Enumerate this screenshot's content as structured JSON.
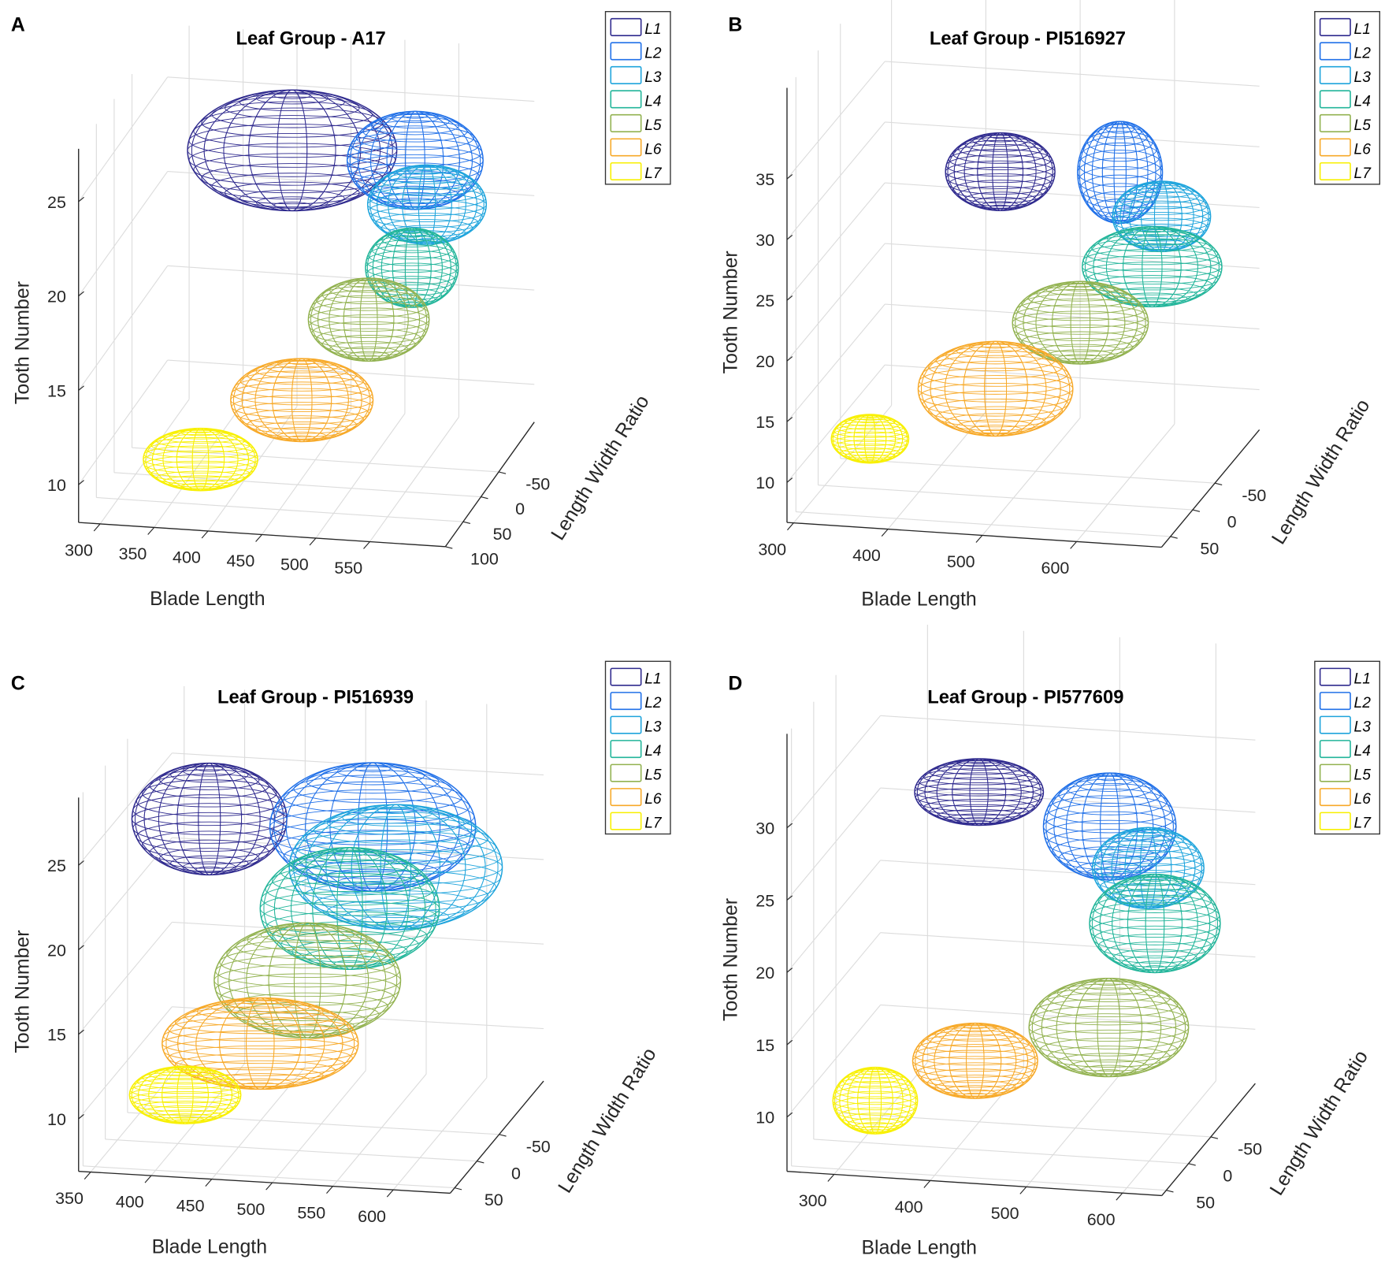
{
  "legend_labels": [
    "L1",
    "L2",
    "L3",
    "L4",
    "L5",
    "L6",
    "L7"
  ],
  "colors": [
    "#2f2a8e",
    "#2070e8",
    "#1ea4dc",
    "#22b59a",
    "#92b250",
    "#f7a928",
    "#f8f000"
  ],
  "chart_data": [
    {
      "type": "scatter3d-ellipsoid",
      "panel": "A",
      "title": "Leaf Group - A17",
      "xlabel": "Blade Length",
      "ylabel": "Length Width Ratio",
      "zlabel": "Tooth Number",
      "xlim": [
        280,
        620
      ],
      "ylim": [
        -150,
        100
      ],
      "zlim": [
        8,
        27.8
      ],
      "xticks": [
        300,
        350,
        400,
        450,
        500,
        550
      ],
      "yticks": [
        -50,
        0,
        50,
        100
      ],
      "zticks": [
        10,
        15,
        20,
        25
      ],
      "grid": true,
      "legend": "top-right",
      "ellipsoids": [
        {
          "label": "L1",
          "blade": 445,
          "lwr": 0,
          "tooth": 25.7,
          "r_blade": 97,
          "r_tooth": 3.2
        },
        {
          "label": "L2",
          "blade": 559,
          "lwr": 0,
          "tooth": 25.6,
          "r_blade": 63,
          "r_tooth": 2.6
        },
        {
          "label": "L3",
          "blade": 570,
          "lwr": 0,
          "tooth": 23.3,
          "r_blade": 55,
          "r_tooth": 2.1
        },
        {
          "label": "L4",
          "blade": 556,
          "lwr": 0,
          "tooth": 19.9,
          "r_blade": 43,
          "r_tooth": 2.1
        },
        {
          "label": "L5",
          "blade": 516,
          "lwr": 0,
          "tooth": 17.0,
          "r_blade": 56,
          "r_tooth": 2.2
        },
        {
          "label": "L6",
          "blade": 454,
          "lwr": 0,
          "tooth": 12.5,
          "r_blade": 66,
          "r_tooth": 2.2
        },
        {
          "label": "L7",
          "blade": 360,
          "lwr": 0,
          "tooth": 9.0,
          "r_blade": 53,
          "r_tooth": 1.65
        }
      ]
    },
    {
      "type": "scatter3d-ellipsoid",
      "panel": "B",
      "title": "Leaf Group - PI516927",
      "xlabel": "Blade Length",
      "ylabel": "Length Width Ratio",
      "zlabel": "Tooth Number",
      "xlim": [
        293,
        690
      ],
      "ylim": [
        -150,
        70
      ],
      "zlim": [
        6.7,
        42.5
      ],
      "xticks": [
        300,
        400,
        500,
        600
      ],
      "yticks": [
        -50,
        0,
        50
      ],
      "zticks": [
        10,
        15,
        20,
        25,
        30,
        35
      ],
      "grid": true,
      "legend": "top-right",
      "ellipsoids": [
        {
          "label": "L1",
          "blade": 486,
          "lwr": 0,
          "tooth": 33.5,
          "r_blade": 58,
          "r_tooth": 3.2
        },
        {
          "label": "L2",
          "blade": 613,
          "lwr": 0,
          "tooth": 34.1,
          "r_blade": 45,
          "r_tooth": 4.2
        },
        {
          "label": "L3",
          "blade": 657,
          "lwr": 0,
          "tooth": 30.7,
          "r_blade": 52,
          "r_tooth": 2.9
        },
        {
          "label": "L4",
          "blade": 647,
          "lwr": 0,
          "tooth": 26.5,
          "r_blade": 74,
          "r_tooth": 3.3
        },
        {
          "label": "L5",
          "blade": 571,
          "lwr": 0,
          "tooth": 21.5,
          "r_blade": 72,
          "r_tooth": 3.4
        },
        {
          "label": "L6",
          "blade": 481,
          "lwr": 0,
          "tooth": 15.6,
          "r_blade": 82,
          "r_tooth": 3.9
        },
        {
          "label": "L7",
          "blade": 348,
          "lwr": 0,
          "tooth": 10.8,
          "r_blade": 41,
          "r_tooth": 2.0
        }
      ]
    },
    {
      "type": "scatter3d-ellipsoid",
      "panel": "C",
      "title": "Leaf Group - PI516939",
      "xlabel": "Blade Length",
      "ylabel": "Length Width Ratio",
      "zlabel": "Tooth Number",
      "xlim": [
        340,
        647
      ],
      "ylim": [
        -150,
        60
      ],
      "zlim": [
        6.9,
        29
      ],
      "xticks": [
        350,
        400,
        450,
        500,
        550,
        600
      ],
      "yticks": [
        -50,
        0,
        50
      ],
      "zticks": [
        10,
        15,
        20,
        25
      ],
      "grid": true,
      "legend": "top-right",
      "ellipsoids": [
        {
          "label": "L1",
          "blade": 426,
          "lwr": 0,
          "tooth": 26.2,
          "r_blade": 64,
          "r_tooth": 3.3
        },
        {
          "label": "L2",
          "blade": 561,
          "lwr": 0,
          "tooth": 26.3,
          "r_blade": 85,
          "r_tooth": 3.8
        },
        {
          "label": "L3",
          "blade": 580,
          "lwr": 0,
          "tooth": 24.0,
          "r_blade": 88,
          "r_tooth": 3.7
        },
        {
          "label": "L4",
          "blade": 542,
          "lwr": 0,
          "tooth": 21.4,
          "r_blade": 74,
          "r_tooth": 3.6
        },
        {
          "label": "L5",
          "blade": 507,
          "lwr": 0,
          "tooth": 17.0,
          "r_blade": 77,
          "r_tooth": 3.4
        },
        {
          "label": "L6",
          "blade": 468,
          "lwr": 0,
          "tooth": 13.1,
          "r_blade": 81,
          "r_tooth": 2.7
        },
        {
          "label": "L7",
          "blade": 406,
          "lwr": 0,
          "tooth": 9.8,
          "r_blade": 46,
          "r_tooth": 1.7
        }
      ]
    },
    {
      "type": "scatter3d-ellipsoid",
      "panel": "D",
      "title": "Leaf Group - PI577609",
      "xlabel": "Blade Length",
      "ylabel": "Length Width Ratio",
      "zlabel": "Tooth Number",
      "xlim": [
        251,
        641
      ],
      "ylim": [
        -150,
        60
      ],
      "zlim": [
        6.25,
        36.5
      ],
      "xticks": [
        300,
        400,
        500,
        600
      ],
      "yticks": [
        -50,
        0,
        50
      ],
      "zticks": [
        10,
        15,
        20,
        25,
        30
      ],
      "grid": true,
      "legend": "top-right",
      "ellipsoids": [
        {
          "label": "L1",
          "blade": 423,
          "lwr": 0,
          "tooth": 31.0,
          "r_blade": 67,
          "r_tooth": 2.3
        },
        {
          "label": "L2",
          "blade": 559,
          "lwr": 0,
          "tooth": 29.2,
          "r_blade": 69,
          "r_tooth": 3.7
        },
        {
          "label": "L3",
          "blade": 599,
          "lwr": 0,
          "tooth": 26.5,
          "r_blade": 58,
          "r_tooth": 2.8
        },
        {
          "label": "L4",
          "blade": 606,
          "lwr": 0,
          "tooth": 22.7,
          "r_blade": 68,
          "r_tooth": 3.4
        },
        {
          "label": "L5",
          "blade": 558,
          "lwr": 0,
          "tooth": 15.3,
          "r_blade": 83,
          "r_tooth": 3.4
        },
        {
          "label": "L6",
          "blade": 419,
          "lwr": 0,
          "tooth": 12.4,
          "r_blade": 65,
          "r_tooth": 2.6
        },
        {
          "label": "L7",
          "blade": 315,
          "lwr": 0,
          "tooth": 9.2,
          "r_blade": 44,
          "r_tooth": 2.3
        }
      ]
    }
  ]
}
